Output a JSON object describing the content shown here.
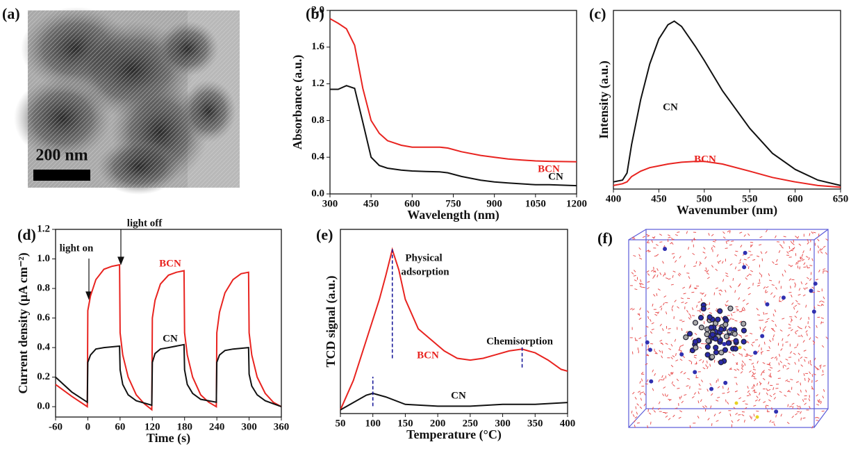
{
  "panels": {
    "a": {
      "label": "(a)",
      "scale_bar": "200 nm"
    },
    "f": {
      "label": "(f)"
    }
  },
  "chart_data": [
    {
      "type": "line",
      "panel_label": "(b)",
      "x_label": "Wavelength (nm)",
      "y_label": "Absorbance (a.u.)",
      "xlim": [
        300,
        1200
      ],
      "xticks": [
        300,
        450,
        600,
        750,
        900,
        1050,
        1200
      ],
      "ylim": [
        0,
        2
      ],
      "yticks": [
        {
          "value": 0,
          "label": "0.0"
        },
        0.4,
        0.8,
        1.2,
        1.6,
        {
          "value": 2,
          "label": "2.0"
        }
      ],
      "series": [
        {
          "name": "BCN",
          "color": "#e8231f",
          "x": [
            300,
            330,
            360,
            390,
            420,
            450,
            480,
            510,
            560,
            600,
            650,
            700,
            730,
            780,
            850,
            900,
            950,
            1000,
            1050,
            1100,
            1200
          ],
          "values": [
            1.91,
            1.86,
            1.8,
            1.62,
            1.15,
            0.8,
            0.66,
            0.58,
            0.53,
            0.51,
            0.51,
            0.51,
            0.5,
            0.46,
            0.42,
            0.4,
            0.38,
            0.37,
            0.36,
            0.355,
            0.35
          ]
        },
        {
          "name": "CN",
          "color": "#111111",
          "x": [
            300,
            330,
            360,
            390,
            420,
            450,
            480,
            510,
            560,
            600,
            650,
            700,
            730,
            780,
            850,
            900,
            950,
            1000,
            1050,
            1100,
            1200
          ],
          "values": [
            1.14,
            1.14,
            1.18,
            1.15,
            0.78,
            0.4,
            0.31,
            0.28,
            0.26,
            0.25,
            0.245,
            0.24,
            0.23,
            0.19,
            0.15,
            0.13,
            0.12,
            0.11,
            0.1,
            0.1,
            0.09
          ]
        }
      ],
      "annotations": [
        {
          "text": "BCN",
          "color": "#e8231f"
        },
        {
          "text": "CN",
          "color": "#111111"
        }
      ]
    },
    {
      "type": "line",
      "panel_label": "(c)",
      "x_label": "Wavenumber (nm)",
      "y_label": "Intensity (a.u.)",
      "xlim": [
        400,
        650
      ],
      "xticks": [
        400,
        450,
        500,
        550,
        600,
        650
      ],
      "ylim": [
        0,
        1
      ],
      "series": [
        {
          "name": "CN",
          "color": "#111111",
          "x": [
            400,
            410,
            415,
            420,
            430,
            440,
            450,
            460,
            467,
            475,
            490,
            500,
            520,
            550,
            575,
            600,
            625,
            650
          ],
          "values": [
            0.04,
            0.05,
            0.09,
            0.25,
            0.5,
            0.7,
            0.84,
            0.92,
            0.94,
            0.91,
            0.8,
            0.72,
            0.55,
            0.34,
            0.2,
            0.11,
            0.05,
            0.02
          ]
        },
        {
          "name": "BCN",
          "color": "#e8231f",
          "x": [
            400,
            410,
            415,
            420,
            430,
            440,
            450,
            460,
            467,
            475,
            490,
            500,
            520,
            550,
            575,
            600,
            625,
            650
          ],
          "values": [
            0.02,
            0.03,
            0.04,
            0.07,
            0.1,
            0.12,
            0.13,
            0.14,
            0.145,
            0.15,
            0.155,
            0.155,
            0.14,
            0.1,
            0.065,
            0.04,
            0.02,
            0.01
          ]
        }
      ],
      "annotations": [
        {
          "text": "CN",
          "color": "#111111"
        },
        {
          "text": "BCN",
          "color": "#e8231f"
        }
      ]
    },
    {
      "type": "line",
      "panel_label": "(d)",
      "x_label": "Time (s)",
      "y_label": "Current density (μA cm⁻²)",
      "xlim": [
        -60,
        360
      ],
      "xticks": [
        -60,
        0,
        60,
        120,
        180,
        240,
        300,
        360
      ],
      "ylim": [
        -0.07,
        1.2
      ],
      "yticks": [
        {
          "value": 0,
          "label": "0.0"
        },
        0.2,
        0.4,
        0.6,
        0.8,
        {
          "value": 1,
          "label": "1.0"
        },
        1.2
      ],
      "series": [
        {
          "name": "BCN",
          "color": "#e8231f",
          "x": [
            -60,
            -30,
            -1,
            0,
            5,
            15,
            30,
            45,
            59,
            60,
            65,
            75,
            90,
            105,
            119,
            120,
            125,
            135,
            150,
            165,
            179,
            180,
            185,
            195,
            210,
            225,
            239,
            240,
            245,
            255,
            270,
            285,
            299,
            300,
            305,
            315,
            330,
            345,
            360
          ],
          "values": [
            0.15,
            0.07,
            0,
            0.65,
            0.75,
            0.86,
            0.93,
            0.95,
            0.96,
            0.5,
            0.35,
            0.2,
            0.08,
            0.02,
            -0.02,
            0.6,
            0.72,
            0.83,
            0.89,
            0.91,
            0.92,
            0.5,
            0.35,
            0.2,
            0.08,
            0.03,
            0,
            0.5,
            0.64,
            0.77,
            0.86,
            0.9,
            0.91,
            0.5,
            0.35,
            0.2,
            0.09,
            0.03,
            0
          ]
        },
        {
          "name": "CN",
          "color": "#111111",
          "x": [
            -60,
            -30,
            -1,
            0,
            5,
            15,
            30,
            59,
            60,
            65,
            75,
            90,
            119,
            120,
            125,
            135,
            150,
            179,
            180,
            185,
            195,
            210,
            239,
            240,
            245,
            255,
            270,
            299,
            300,
            305,
            315,
            330,
            360
          ],
          "values": [
            0.2,
            0.1,
            0.03,
            0.3,
            0.35,
            0.39,
            0.4,
            0.41,
            0.25,
            0.15,
            0.08,
            0.04,
            0.01,
            0.3,
            0.36,
            0.39,
            0.4,
            0.42,
            0.25,
            0.15,
            0.09,
            0.05,
            0.03,
            0.3,
            0.35,
            0.38,
            0.39,
            0.4,
            0.22,
            0.14,
            0.08,
            0.04,
            0
          ]
        }
      ],
      "annotations": [
        {
          "text": "light on",
          "color": "#111111"
        },
        {
          "text": "light off",
          "color": "#111111"
        },
        {
          "text": "BCN",
          "color": "#e8231f"
        },
        {
          "text": "CN",
          "color": "#111111"
        }
      ]
    },
    {
      "type": "line",
      "panel_label": "(e)",
      "x_label": "Temperature (°C)",
      "y_label": "TCD signal (a.u.)",
      "xlim": [
        50,
        400
      ],
      "xticks": [
        50,
        100,
        150,
        200,
        250,
        300,
        350,
        400
      ],
      "ylim": [
        0,
        1
      ],
      "series": [
        {
          "name": "BCN",
          "color": "#e8231f",
          "x": [
            50,
            70,
            90,
            110,
            120,
            130,
            140,
            150,
            170,
            190,
            210,
            230,
            250,
            270,
            290,
            310,
            330,
            350,
            370,
            390,
            400
          ],
          "values": [
            0.02,
            0.18,
            0.4,
            0.62,
            0.75,
            0.89,
            0.78,
            0.62,
            0.46,
            0.4,
            0.34,
            0.3,
            0.29,
            0.3,
            0.32,
            0.34,
            0.35,
            0.33,
            0.29,
            0.24,
            0.23
          ]
        },
        {
          "name": "CN",
          "color": "#111111",
          "x": [
            50,
            70,
            90,
            100,
            120,
            150,
            200,
            250,
            300,
            350,
            400
          ],
          "values": [
            0.02,
            0.06,
            0.1,
            0.11,
            0.09,
            0.05,
            0.04,
            0.04,
            0.05,
            0.05,
            0.06
          ]
        }
      ],
      "peak_lines": [
        {
          "x": 130,
          "from": 0.3,
          "to": 0.9
        },
        {
          "x": 100,
          "from": 0.04,
          "to": 0.2
        },
        {
          "x": 330,
          "from": 0.25,
          "to": 0.37
        }
      ],
      "annotations": [
        {
          "text": "Physical",
          "color": "#111111"
        },
        {
          "text": "adsorption",
          "color": "#111111"
        },
        {
          "text": "Chemisorption",
          "color": "#111111"
        },
        {
          "text": "BCN",
          "color": "#e8231f"
        },
        {
          "text": "CN",
          "color": "#111111"
        }
      ]
    }
  ]
}
